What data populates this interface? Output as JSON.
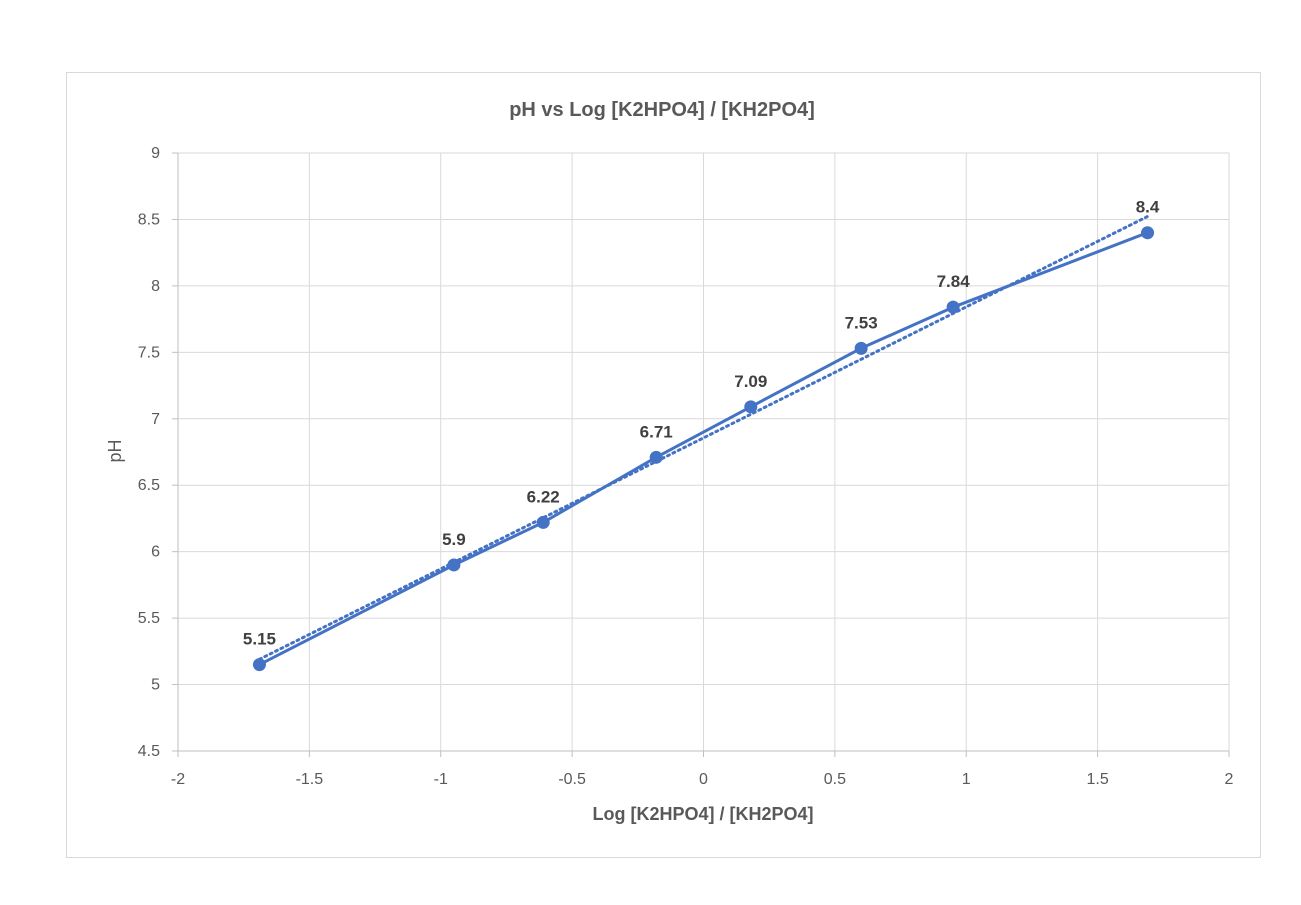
{
  "chart_data": {
    "type": "scatter",
    "title": "pH vs Log [K2HPO4] / [KH2PO4]",
    "xlabel": "Log [K2HPO4] / [KH2PO4]",
    "ylabel": "pH",
    "xlim": [
      -2,
      2
    ],
    "ylim": [
      4.5,
      9
    ],
    "x_ticks": [
      -2,
      -1.5,
      -1,
      -0.5,
      0,
      0.5,
      1,
      1.5,
      2
    ],
    "y_ticks": [
      4.5,
      5,
      5.5,
      6,
      6.5,
      7,
      7.5,
      8,
      8.5,
      9
    ],
    "x_tick_labels": [
      "-2",
      "-1.5",
      "-1",
      "-0.5",
      "0",
      "0.5",
      "1",
      "1.5",
      "2"
    ],
    "y_tick_labels": [
      "4.5",
      "5",
      "5.5",
      "6",
      "6.5",
      "7",
      "7.5",
      "8",
      "8.5",
      "9"
    ],
    "grid": true,
    "legend": "none",
    "series": [
      {
        "x": [
          -1.69,
          -0.95,
          -0.61,
          -0.18,
          0.18,
          0.6,
          0.95,
          1.69
        ],
        "y": [
          5.15,
          5.9,
          6.22,
          6.71,
          7.09,
          7.53,
          7.84,
          8.4
        ],
        "data_labels": [
          "5.15",
          "5.9",
          "6.22",
          "6.71",
          "7.09",
          "7.53",
          "7.84",
          "8.4"
        ],
        "color": "#4472c4",
        "line": "solid",
        "markers": true
      }
    ],
    "trendline": {
      "kind": "linear",
      "style": "dotted",
      "color": "#4472c4"
    },
    "colors": {
      "series": "#4472c4",
      "grid": "#d9d9d9",
      "text": "#595959",
      "data_label": "#404040"
    }
  }
}
